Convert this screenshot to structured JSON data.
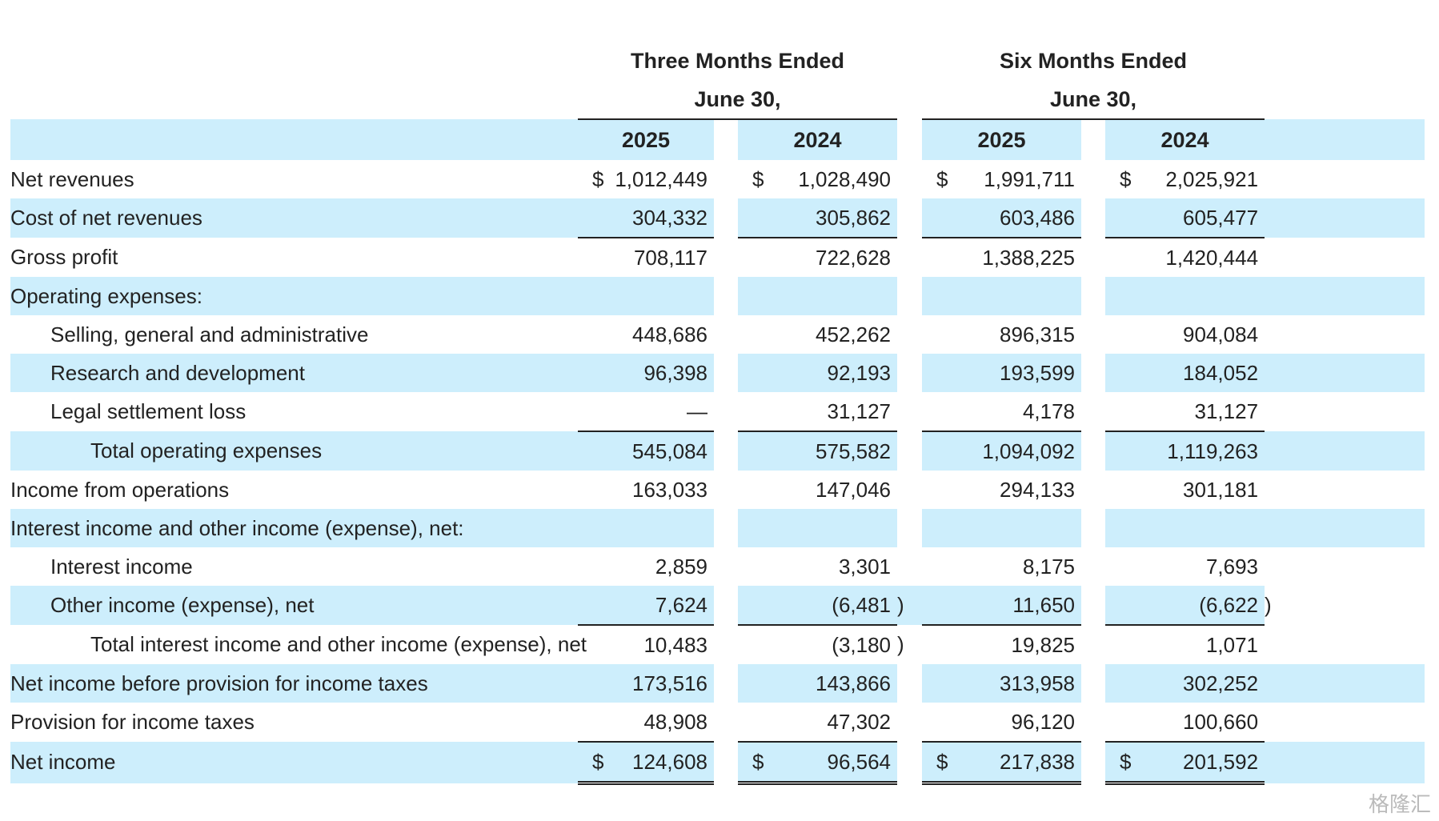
{
  "header": {
    "three_months_line1": "Three Months Ended",
    "three_months_line2": "June 30,",
    "six_months_line1": "Six Months Ended",
    "six_months_line2": "June 30,",
    "years": [
      "2025",
      "2024",
      "2025",
      "2024"
    ]
  },
  "rows": [
    {
      "label": "Net revenues",
      "values": [
        "1,012,449",
        "1,028,490",
        "1,991,711",
        "2,025,921"
      ],
      "currency": "$"
    },
    {
      "label": "Cost of net revenues",
      "values": [
        "304,332",
        "305,862",
        "603,486",
        "605,477"
      ]
    },
    {
      "label": "Gross profit",
      "values": [
        "708,117",
        "722,628",
        "1,388,225",
        "1,420,444"
      ]
    },
    {
      "label": "Operating expenses:",
      "values": []
    },
    {
      "label": "Selling, general and administrative",
      "values": [
        "448,686",
        "452,262",
        "896,315",
        "904,084"
      ]
    },
    {
      "label": "Research and development",
      "values": [
        "96,398",
        "92,193",
        "193,599",
        "184,052"
      ]
    },
    {
      "label": "Legal settlement loss",
      "values": [
        "—",
        "31,127",
        "4,178",
        "31,127"
      ]
    },
    {
      "label": "Total operating expenses",
      "values": [
        "545,084",
        "575,582",
        "1,094,092",
        "1,119,263"
      ]
    },
    {
      "label": "Income from operations",
      "values": [
        "163,033",
        "147,046",
        "294,133",
        "301,181"
      ]
    },
    {
      "label": "Interest income and other income (expense), net:",
      "values": []
    },
    {
      "label": "Interest income",
      "values": [
        "2,859",
        "3,301",
        "8,175",
        "7,693"
      ]
    },
    {
      "label": "Other income (expense), net",
      "values": [
        "7,624",
        "(6,481",
        "11,650",
        "(6,622"
      ],
      "parens": [
        false,
        true,
        false,
        true
      ]
    },
    {
      "label": "Total interest income and other income (expense), net",
      "values": [
        "10,483",
        "(3,180",
        "19,825",
        "1,071"
      ],
      "parens": [
        false,
        true,
        false,
        false
      ]
    },
    {
      "label": "Net income before provision for income taxes",
      "values": [
        "173,516",
        "143,866",
        "313,958",
        "302,252"
      ]
    },
    {
      "label": "Provision for income taxes",
      "values": [
        "48,908",
        "47,302",
        "96,120",
        "100,660"
      ]
    },
    {
      "label": "Net income",
      "values": [
        "124,608",
        "96,564",
        "217,838",
        "201,592"
      ],
      "currency": "$"
    }
  ],
  "paren_close": ")",
  "watermark": "格隆汇"
}
